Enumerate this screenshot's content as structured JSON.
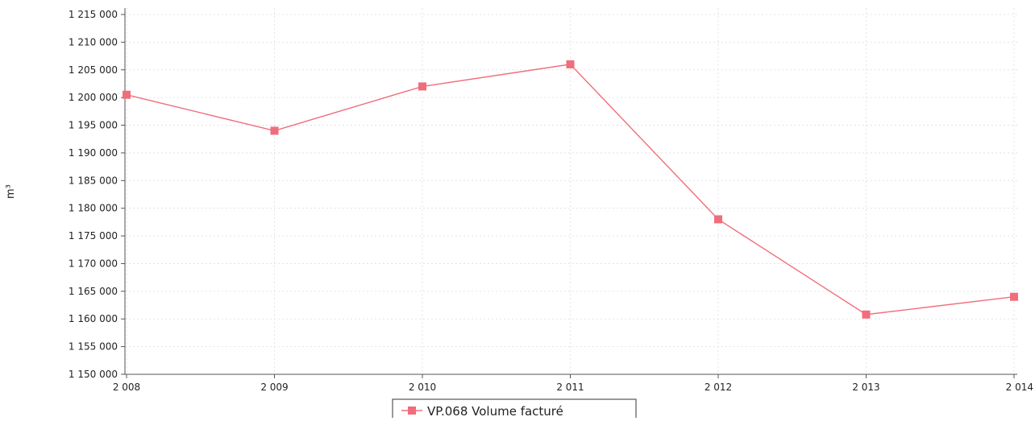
{
  "chart_data": {
    "type": "line",
    "title": "",
    "xlabel": "",
    "ylabel": "m³",
    "x": [
      "2 008",
      "2 009",
      "2 010",
      "2 011",
      "2 012",
      "2 013",
      "2 014"
    ],
    "y_ticks": [
      "1 150 000",
      "1 155 000",
      "1 160 000",
      "1 165 000",
      "1 170 000",
      "1 175 000",
      "1 180 000",
      "1 185 000",
      "1 190 000",
      "1 195 000",
      "1 200 000",
      "1 205 000",
      "1 210 000",
      "1 215 000"
    ],
    "ylim": [
      1150000,
      1215000
    ],
    "grid": true,
    "legend": "bottom-center",
    "series": [
      {
        "name": "VP.068 Volume facturé",
        "color": "#f06d7b",
        "values": [
          1200500,
          1194000,
          1202000,
          1206000,
          1178000,
          1160800,
          1164000
        ]
      }
    ]
  }
}
